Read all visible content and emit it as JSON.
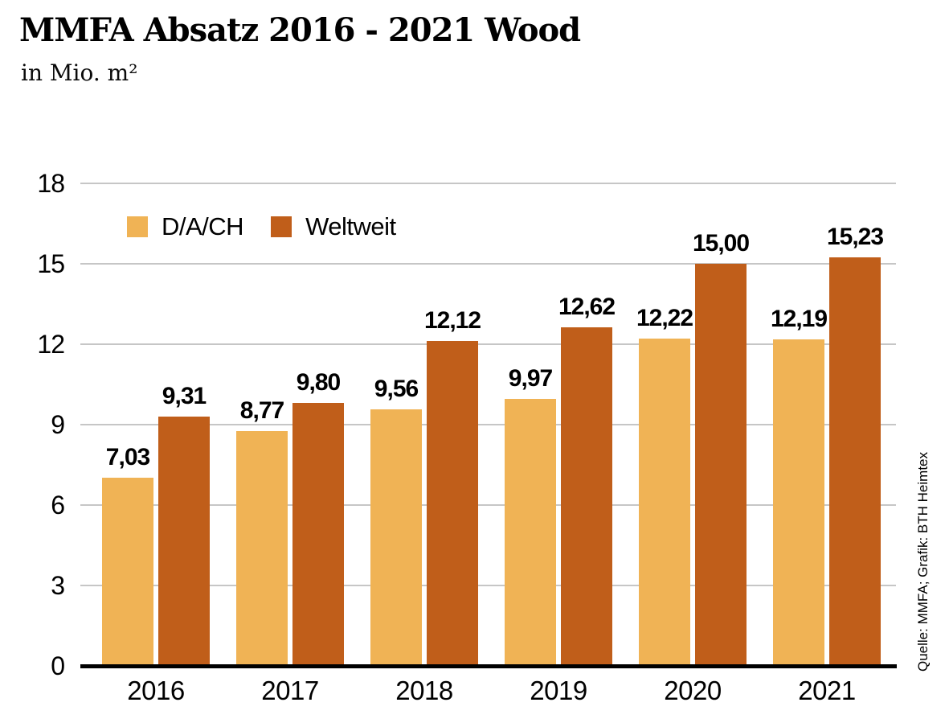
{
  "header": {
    "title": "MMFA Absatz 2016 - 2021 Wood",
    "subtitle": "in Mio. m²"
  },
  "chart_data": {
    "type": "bar",
    "title": "MMFA Absatz 2016 - 2021 Wood",
    "unit_label": "in Mio. m²",
    "categories": [
      "2016",
      "2017",
      "2018",
      "2019",
      "2020",
      "2021"
    ],
    "series": [
      {
        "name": "D/A/CH",
        "color": "#f0b355",
        "values": [
          7.03,
          8.77,
          9.56,
          9.97,
          12.22,
          12.19
        ],
        "labels": [
          "7,03",
          "8,77",
          "9,56",
          "9,97",
          "12,22",
          "12,19"
        ]
      },
      {
        "name": "Weltweit",
        "color": "#c05e1a",
        "values": [
          9.31,
          9.8,
          12.12,
          12.62,
          15.0,
          15.23
        ],
        "labels": [
          "9,31",
          "9,80",
          "12,12",
          "12,62",
          "15,00",
          "15,23"
        ]
      }
    ],
    "xlabel": "",
    "ylabel": "",
    "ylim": [
      0,
      18
    ],
    "yticks": [
      0,
      3,
      6,
      9,
      12,
      15,
      18
    ],
    "grid": true,
    "legend_position": "top-left-inside"
  },
  "source_note": "Quelle: MMFA; Grafik: BTH Heimtex",
  "colors": {
    "series_dach": "#f0b355",
    "series_weltweit": "#c05e1a",
    "gridline": "#c6c6c6",
    "axis_line": "#000000",
    "text": "#000000",
    "background": "#ffffff"
  }
}
